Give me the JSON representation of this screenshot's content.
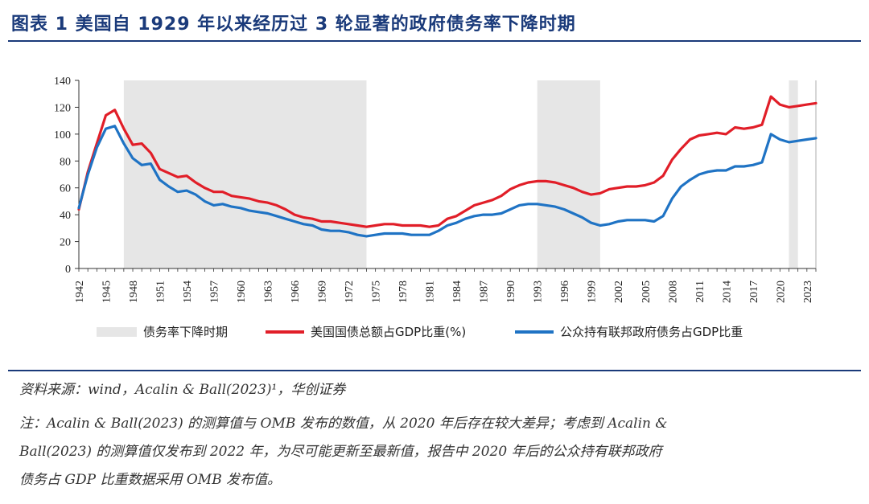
{
  "title": "图表  1    美国自 1929 年以来经历过 3 轮显著的政府债务率下降时期",
  "chart_data": {
    "type": "line",
    "x_start": 1942,
    "x_end": 2024,
    "ylim": [
      0,
      140
    ],
    "yticks": [
      "0",
      "20",
      "40",
      "60",
      "80",
      "100",
      "120",
      "140"
    ],
    "xtick_labels": [
      "1942",
      "1945",
      "1948",
      "1951",
      "1954",
      "1957",
      "1960",
      "1963",
      "1966",
      "1969",
      "1972",
      "1975",
      "1978",
      "1981",
      "1984",
      "1987",
      "1990",
      "1993",
      "1996",
      "1999",
      "2002",
      "2005",
      "2008",
      "2011",
      "2014",
      "2017",
      "2020",
      "2023"
    ],
    "shaded_periods": [
      [
        1947,
        1974
      ],
      [
        1993,
        2000
      ],
      [
        2021,
        2022
      ]
    ],
    "series": [
      {
        "name": "美国国债总额占GDP比重(%)",
        "color": "#e11e28",
        "values": [
          44,
          72,
          93,
          114,
          118,
          104,
          92,
          93,
          86,
          74,
          71,
          68,
          69,
          64,
          60,
          57,
          57,
          54,
          53,
          52,
          50,
          49,
          47,
          44,
          40,
          38,
          37,
          35,
          35,
          34,
          33,
          32,
          31,
          32,
          33,
          33,
          32,
          32,
          32,
          31,
          32,
          37,
          39,
          43,
          47,
          49,
          51,
          54,
          59,
          62,
          64,
          65,
          65,
          64,
          62,
          60,
          57,
          55,
          56,
          59,
          60,
          61,
          61,
          62,
          64,
          69,
          81,
          89,
          96,
          99,
          100,
          101,
          100,
          105,
          104,
          105,
          107,
          128,
          122,
          120,
          121,
          122,
          123
        ]
      },
      {
        "name": "公众持有联邦政府债务占GDP比重",
        "color": "#1f73c4",
        "values": [
          45,
          70,
          90,
          104,
          106,
          93,
          82,
          77,
          78,
          66,
          61,
          57,
          58,
          55,
          50,
          47,
          48,
          46,
          45,
          43,
          42,
          41,
          39,
          37,
          35,
          33,
          32,
          29,
          28,
          28,
          27,
          25,
          24,
          25,
          26,
          26,
          26,
          25,
          25,
          25,
          28,
          32,
          34,
          37,
          39,
          40,
          40,
          41,
          44,
          47,
          48,
          48,
          47,
          46,
          44,
          41,
          38,
          34,
          32,
          33,
          35,
          36,
          36,
          36,
          35,
          39,
          52,
          61,
          66,
          70,
          72,
          73,
          73,
          76,
          76,
          77,
          79,
          100,
          96,
          94,
          95,
          96,
          97
        ]
      }
    ]
  },
  "legend": {
    "shade_label": "债务率下降时期",
    "red_label": "美国国债总额占GDP比重(%)",
    "blue_label": "公众持有联邦政府债务占GDP比重"
  },
  "notes": {
    "source": "资料来源：wind，Acalin & Ball(2023)¹，华创证券",
    "note_line1": "注：Acalin & Ball(2023) 的测算值与 OMB 发布的数值，从 2020 年后存在较大差异；考虑到 Acalin &",
    "note_line2": "Ball(2023) 的测算值仅发布到 2022 年，为尽可能更新至最新值，报告中 2020 年后的公众持有联邦政府",
    "note_line3": "债务占 GDP 比重数据采用 OMB 发布值。"
  }
}
